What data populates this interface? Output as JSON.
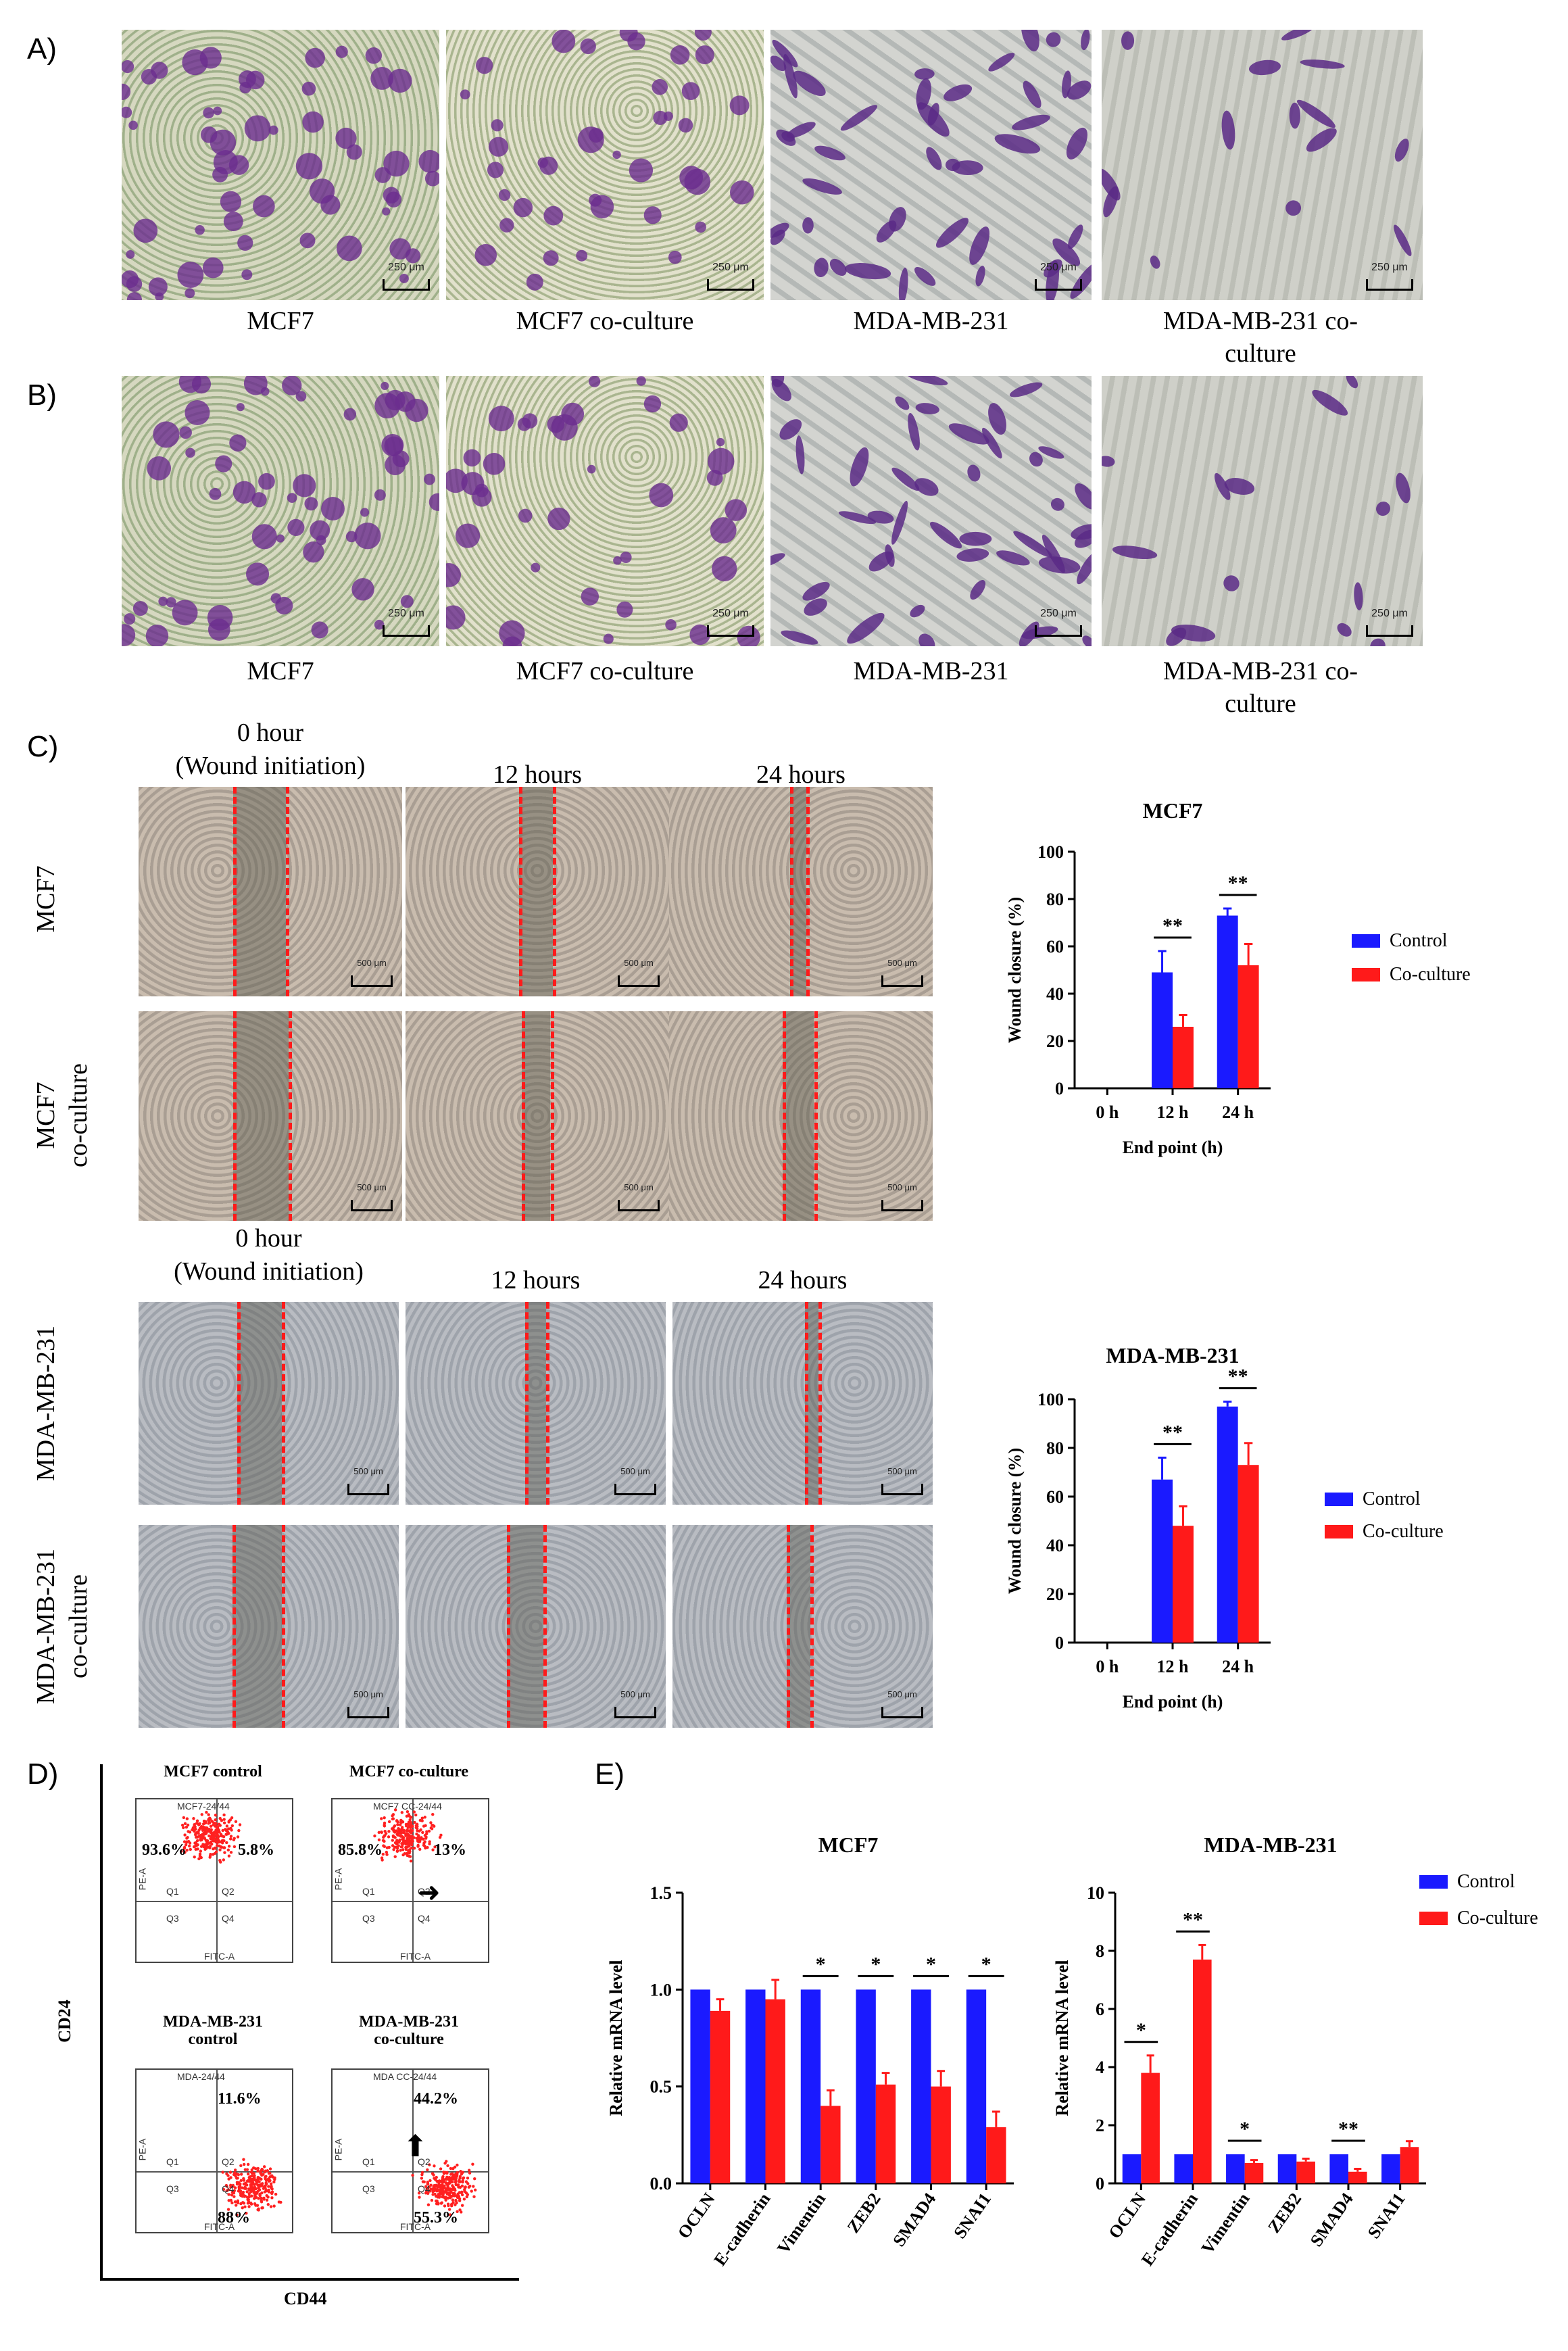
{
  "panels": {
    "a": "A)",
    "b": "B)",
    "c": "C)",
    "d": "D)",
    "e": "E)"
  },
  "micro_colors": {
    "mcf7_purple": "#6b2d8f",
    "mda_purple": "#5b2a86",
    "green_bg": "#b8c49a",
    "grey_bg": "#c9cbc4"
  },
  "row_a": {
    "captions": [
      "MCF7",
      "MCF7 co-culture",
      "MDA-MB-231",
      "MDA-MB-231 co-culture"
    ],
    "scale": [
      "250 μm",
      "250 μm",
      "250 μm",
      "250 μm"
    ]
  },
  "row_b": {
    "captions": [
      "MCF7",
      "MCF7 co-culture",
      "MDA-MB-231",
      "MDA-MB-231 co-culture"
    ],
    "scale": [
      "250 μm",
      "250 μm",
      "250 μm",
      "250 μm"
    ]
  },
  "wound": {
    "top_headers": [
      "0 hour\n(Wound initiation)",
      "12 hours",
      "24 hours"
    ],
    "bottom_headers": [
      "0 hour\n(Wound initiation)",
      "12 hours",
      "24 hours"
    ],
    "row_labels": [
      "MCF7",
      "MCF7\nco-culture",
      "MDA-MB-231",
      "MDA-MB-231\nco-culture"
    ],
    "scale": "500 μm"
  },
  "chart_data": [
    {
      "type": "bar",
      "title": "MCF7",
      "xlabel": "End point (h)",
      "ylabel": "Wound closure (%)",
      "categories": [
        "0 h",
        "12 h",
        "24 h"
      ],
      "series": [
        {
          "name": "Control",
          "color": "#1a1aff",
          "values": [
            0,
            49,
            73
          ],
          "errors": [
            0,
            9,
            3
          ]
        },
        {
          "name": "Co-culture",
          "color": "#ff1a1a",
          "values": [
            0,
            26,
            52
          ],
          "errors": [
            0,
            5,
            9
          ]
        }
      ],
      "ylim": [
        0,
        100
      ],
      "yticks": [
        0,
        20,
        40,
        60,
        80,
        100
      ],
      "significance": [
        "",
        "**",
        "**"
      ],
      "legend": "right"
    },
    {
      "type": "bar",
      "title": "MDA-MB-231",
      "xlabel": "End point (h)",
      "ylabel": "Wound closure (%)",
      "categories": [
        "0 h",
        "12 h",
        "24 h"
      ],
      "series": [
        {
          "name": "Control",
          "color": "#1a1aff",
          "values": [
            0,
            67,
            97
          ],
          "errors": [
            0,
            9,
            2
          ]
        },
        {
          "name": "Co-culture",
          "color": "#ff1a1a",
          "values": [
            0,
            48,
            73
          ],
          "errors": [
            0,
            8,
            9
          ]
        }
      ],
      "ylim": [
        0,
        100
      ],
      "yticks": [
        0,
        20,
        40,
        60,
        80,
        100
      ],
      "significance": [
        "",
        "**",
        "**"
      ],
      "legend": "right"
    },
    {
      "type": "bar",
      "title": "MCF7",
      "xlabel": "",
      "ylabel": "Relative mRNA level",
      "categories": [
        "OCLN",
        "E-cadherin",
        "Vimentin",
        "ZEB2",
        "SMAD4",
        "SNAI1"
      ],
      "series": [
        {
          "name": "Control",
          "color": "#1a1aff",
          "values": [
            1.0,
            1.0,
            1.0,
            1.0,
            1.0,
            1.0
          ],
          "errors": [
            0,
            0,
            0,
            0,
            0,
            0
          ]
        },
        {
          "name": "Co-culture",
          "color": "#ff1a1a",
          "values": [
            0.89,
            0.95,
            0.4,
            0.51,
            0.5,
            0.29
          ],
          "errors": [
            0.06,
            0.1,
            0.08,
            0.06,
            0.08,
            0.08
          ]
        }
      ],
      "ylim": [
        0,
        1.5
      ],
      "yticks": [
        0.0,
        0.5,
        1.0,
        1.5
      ],
      "tickfmt": 1,
      "significance": [
        "",
        "",
        "*",
        "*",
        "*",
        "*"
      ]
    },
    {
      "type": "bar",
      "title": "MDA-MB-231",
      "xlabel": "",
      "ylabel": "Relative mRNA level",
      "categories": [
        "OCLN",
        "E-cadherin",
        "Vimentin",
        "ZEB2",
        "SMAD4",
        "SNAI1"
      ],
      "series": [
        {
          "name": "Control",
          "color": "#1a1aff",
          "values": [
            1.0,
            1.0,
            1.0,
            1.0,
            1.0,
            1.0
          ],
          "errors": [
            0,
            0,
            0,
            0,
            0,
            0
          ]
        },
        {
          "name": "Co-culture",
          "color": "#ff1a1a",
          "values": [
            3.8,
            7.7,
            0.7,
            0.75,
            0.4,
            1.25
          ],
          "errors": [
            0.6,
            0.5,
            0.1,
            0.1,
            0.1,
            0.2
          ]
        }
      ],
      "ylim": [
        0,
        10
      ],
      "yticks": [
        0,
        2,
        4,
        6,
        8,
        10
      ],
      "significance": [
        "*",
        "**",
        "*",
        "",
        "**",
        ""
      ],
      "legend": "top-right"
    }
  ],
  "flow": {
    "ylabel": "CD24",
    "xlabel": "CD44",
    "axis_x": "FITC-A",
    "axis_y": "PE-A",
    "plots": [
      {
        "title": "MCF7 control",
        "sample": "MCF7-24/44",
        "q1": "93.6%",
        "q2": "5.8%",
        "q4": "",
        "quads": [
          "Q1",
          "Q2",
          "Q3",
          "Q4"
        ]
      },
      {
        "title": "MCF7 co-culture",
        "sample": "MCF7 CC-24/44",
        "q1": "85.8%",
        "q2": "13%",
        "q4": "",
        "quads": [
          "Q1",
          "Q2",
          "Q3",
          "Q4"
        ]
      },
      {
        "title": "MDA-MB-231\ncontrol",
        "sample": "MDA-24/44",
        "q1": "",
        "q2": "11.6%",
        "q4": "88%",
        "quads": [
          "Q1",
          "Q2",
          "Q3",
          "Q4"
        ]
      },
      {
        "title": "MDA-MB-231\nco-culture",
        "sample": "MDA CC-24/44",
        "q1": "",
        "q2": "44.2%",
        "q4": "55.3%",
        "quads": [
          "Q1",
          "Q2",
          "Q3",
          "Q4"
        ]
      }
    ]
  }
}
